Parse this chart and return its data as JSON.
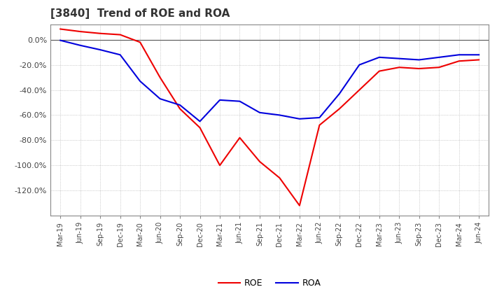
{
  "title": "[3840]  Trend of ROE and ROA",
  "title_fontsize": 11,
  "background_color": "#ffffff",
  "plot_bg_color": "#ffffff",
  "grid_color": "#aaaaaa",
  "x_labels": [
    "Mar-19",
    "Jun-19",
    "Sep-19",
    "Dec-19",
    "Mar-20",
    "Jun-20",
    "Sep-20",
    "Dec-20",
    "Mar-21",
    "Jun-21",
    "Sep-21",
    "Dec-21",
    "Mar-22",
    "Jun-22",
    "Sep-22",
    "Dec-22",
    "Mar-23",
    "Jun-23",
    "Sep-23",
    "Dec-23",
    "Mar-24",
    "Jun-24"
  ],
  "roe": [
    0.085,
    0.065,
    0.05,
    0.04,
    -0.02,
    -0.3,
    -0.55,
    -0.7,
    -1.0,
    -0.78,
    -0.97,
    -1.1,
    -1.32,
    -0.68,
    -0.55,
    -0.4,
    -0.25,
    -0.22,
    -0.23,
    -0.22,
    -0.17,
    -0.16
  ],
  "roa": [
    -0.005,
    -0.045,
    -0.08,
    -0.12,
    -0.33,
    -0.47,
    -0.52,
    -0.65,
    -0.48,
    -0.49,
    -0.58,
    -0.6,
    -0.63,
    -0.62,
    -0.43,
    -0.2,
    -0.14,
    -0.15,
    -0.16,
    -0.14,
    -0.12,
    -0.12
  ],
  "roe_color": "#ee0000",
  "roa_color": "#0000dd",
  "ylim": [
    -1.4,
    0.12
  ],
  "yticks": [
    0.0,
    -0.2,
    -0.4,
    -0.6,
    -0.8,
    -1.0,
    -1.2
  ],
  "legend_labels": [
    "ROE",
    "ROA"
  ]
}
